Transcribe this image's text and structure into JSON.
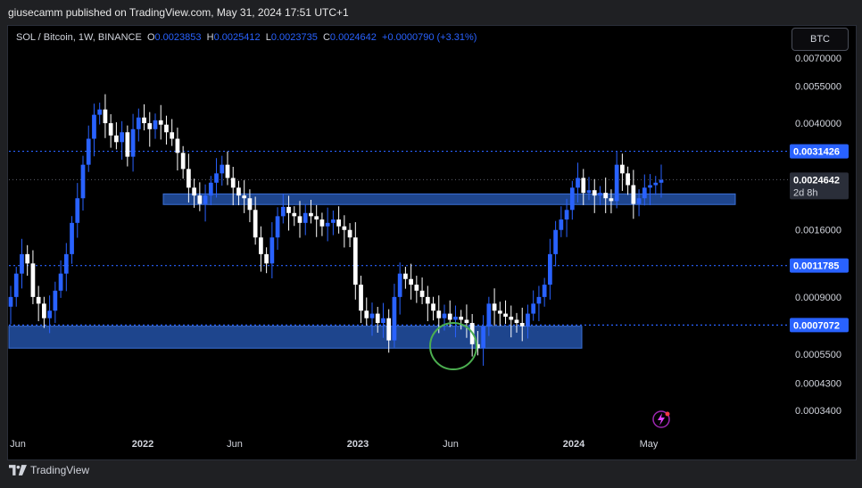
{
  "header": {
    "publisher_line": "giusecamm published on TradingView.com, May 31, 2024 17:51 UTC+1"
  },
  "legend": {
    "symbol": "SOL / Bitcoin, 1W, BINANCE",
    "o_label": "O",
    "o_value": "0.0023853",
    "h_label": "H",
    "h_value": "0.0025412",
    "l_label": "L",
    "l_value": "0.0023735",
    "c_label": "C",
    "c_value": "0.0024642",
    "change": "+0.0000790 (+3.31%)"
  },
  "currency_button": "BTC",
  "footer": {
    "brand": "TradingView"
  },
  "colors": {
    "candle": "#2962ff",
    "candle_alt": "#ffffff",
    "zone_fill": "#2351a6",
    "level_line": "#2962ff",
    "circle": "#4caf50",
    "price_tag_bg": "#2962ff"
  },
  "icons": {
    "lightning": "lightning-icon",
    "tradingview": "tradingview-logo"
  },
  "chart_data": {
    "type": "candlestick",
    "log_scale": true,
    "symbol": "SOL / Bitcoin",
    "interval": "1W",
    "x_tick_labels": [
      "Jun",
      "2022",
      "Jun",
      "2023",
      "Jun",
      "2024",
      "May"
    ],
    "y_tick_labels": [
      "0.0070000",
      "0.0055000",
      "0.0040000",
      "0.0016000",
      "0.0009000",
      "0.0005500",
      "0.0004300",
      "0.0003400"
    ],
    "y_ticks": [
      0.007,
      0.0055,
      0.004,
      0.0016,
      0.0009,
      0.00055,
      0.00043,
      0.00034
    ],
    "price_levels": [
      {
        "label": "0.0031426",
        "value": 0.0031426
      },
      {
        "label": "0.0011785",
        "value": 0.0011785
      },
      {
        "label": "0.0007072",
        "value": 0.0007072
      }
    ],
    "last_price": {
      "label": "0.0024642",
      "value": 0.0024642,
      "countdown": "2d 8h"
    },
    "zones": [
      {
        "from_value": 0.00199,
        "to_value": 0.00218,
        "start": "2021-12",
        "end": "2024-10"
      },
      {
        "from_value": 0.00058,
        "to_value": 0.0007,
        "start": "2021-05",
        "end": "2024-01"
      }
    ],
    "highlight_circle": {
      "date": "2023-06",
      "value": 0.00059
    },
    "series_weekly_closes": [
      0.0009,
      0.0011,
      0.0013,
      0.0012,
      0.0009,
      0.00085,
      0.00075,
      0.0008,
      0.00095,
      0.0011,
      0.0013,
      0.0017,
      0.0021,
      0.0028,
      0.0035,
      0.0043,
      0.0045,
      0.004,
      0.0036,
      0.0034,
      0.0037,
      0.003,
      0.0038,
      0.0042,
      0.004,
      0.0038,
      0.0041,
      0.00395,
      0.0037,
      0.0035,
      0.0031,
      0.0027,
      0.0023,
      0.00215,
      0.002,
      0.00215,
      0.0024,
      0.0026,
      0.0028,
      0.0025,
      0.0023,
      0.00215,
      0.0021,
      0.0019,
      0.0015,
      0.0013,
      0.0012,
      0.0015,
      0.0018,
      0.00195,
      0.00185,
      0.0018,
      0.0017,
      0.00185,
      0.0018,
      0.00175,
      0.00165,
      0.0017,
      0.00175,
      0.00165,
      0.0016,
      0.0015,
      0.001,
      0.0008,
      0.00075,
      0.00078,
      0.00072,
      0.00075,
      0.00062,
      0.0009,
      0.0011,
      0.00105,
      0.001,
      0.00095,
      0.0009,
      0.00085,
      0.0008,
      0.00075,
      0.00078,
      0.00074,
      0.00076,
      0.00074,
      0.00072,
      0.0006,
      0.00058,
      0.0007,
      0.00085,
      0.0008,
      0.00078,
      0.00076,
      0.00074,
      0.00072,
      0.0007,
      0.00078,
      0.00085,
      0.0009,
      0.001,
      0.0013,
      0.0016,
      0.00175,
      0.0019,
      0.0023,
      0.0025,
      0.0022,
      0.00225,
      0.00215,
      0.0022,
      0.0021,
      0.00205,
      0.0028,
      0.0026,
      0.00235,
      0.002,
      0.0021,
      0.0023,
      0.00235,
      0.0024,
      0.00246
    ]
  }
}
